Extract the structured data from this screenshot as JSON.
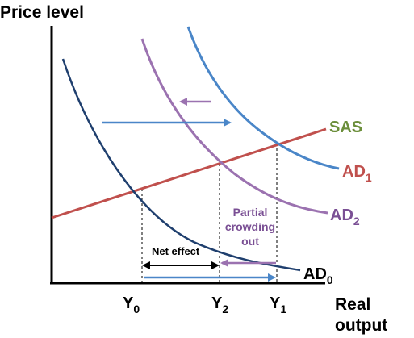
{
  "axes": {
    "y_label": "Price level",
    "x_label_line1": "Real",
    "x_label_line2": "output"
  },
  "curves": {
    "sas": {
      "label": "SAS",
      "color": "#c0504d"
    },
    "ad0": {
      "label": "AD",
      "sub": "0",
      "color": "#1f3f6e"
    },
    "ad1": {
      "label": "AD",
      "sub": "1",
      "color": "#4a86c8"
    },
    "ad2": {
      "label": "AD",
      "sub": "2",
      "color": "#9b72b0"
    }
  },
  "x_ticks": {
    "y0": {
      "label": "Y",
      "sub": "0"
    },
    "y2": {
      "label": "Y",
      "sub": "2"
    },
    "y1": {
      "label": "Y",
      "sub": "1"
    }
  },
  "annotations": {
    "partial_line1": "Partial",
    "partial_line2": "crowding",
    "partial_line3": "out",
    "net_effect": "Net effect"
  },
  "colors": {
    "axis": "#000000",
    "blue_arrow": "#4a86c8",
    "purple_arrow": "#9b72b0",
    "purple_text": "#7a4f94",
    "sas_text": "#6b8e3a"
  }
}
